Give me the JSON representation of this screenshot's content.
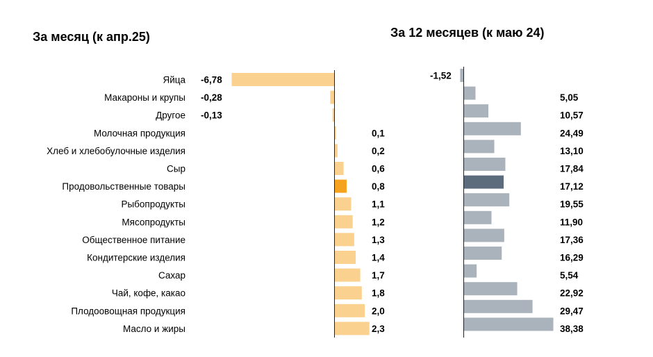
{
  "chart_data": [
    {
      "type": "bar",
      "orientation": "horizontal",
      "title": "За месяц (к апр.25)",
      "categories": [
        "Яйца",
        "Макароны и крупы",
        "Другое",
        "Молочная продукция",
        "Хлеб и хлебобулочные изделия",
        "Сыр",
        "Продовольственные товары",
        "Рыбопродукты",
        "Мясопродукты",
        "Общественное питание",
        "Кондитерские изделия",
        "Сахар",
        "Чай, кофе, какао",
        "Плодоовощная продукция",
        "Масло и жиры"
      ],
      "values": [
        -6.78,
        -0.28,
        -0.13,
        0.1,
        0.2,
        0.6,
        0.8,
        1.1,
        1.2,
        1.3,
        1.4,
        1.7,
        1.8,
        2.0,
        2.3
      ],
      "labels": [
        "-6,78",
        "-0,28",
        "-0,13",
        "0,1",
        "0,2",
        "0,6",
        "0,8",
        "1,1",
        "1,2",
        "1,3",
        "1,4",
        "1,7",
        "1,8",
        "2,0",
        "2,3"
      ],
      "highlight_index": 6,
      "colors": {
        "bar": "#fad18e",
        "highlight": "#f5a31e",
        "axis": "#222222"
      },
      "grid": false,
      "legend": "none"
    },
    {
      "type": "bar",
      "orientation": "horizontal",
      "title": "За 12 месяцев (к маю 24)",
      "categories": [
        "Яйца",
        "Макароны и крупы",
        "Другое",
        "Молочная продукция",
        "Хлеб и хлебобулочные изделия",
        "Сыр",
        "Продовольственные товары",
        "Рыбопродукты",
        "Мясопродукты",
        "Общественное питание",
        "Кондитерские изделия",
        "Сахар",
        "Чай, кофе, какао",
        "Плодоовощная продукция",
        "Масло и жиры"
      ],
      "values": [
        -1.52,
        5.05,
        10.57,
        24.49,
        13.1,
        17.84,
        17.12,
        19.55,
        11.9,
        17.36,
        16.29,
        5.54,
        22.92,
        29.47,
        38.38
      ],
      "labels": [
        "-1,52",
        "5,05",
        "10,57",
        "24,49",
        "13,10",
        "17,84",
        "17,12",
        "19,55",
        "11,90",
        "17,36",
        "16,29",
        "5,54",
        "22,92",
        "29,47",
        "38,38"
      ],
      "highlight_index": 6,
      "colors": {
        "bar": "#aab3bb",
        "highlight": "#5c6c7c",
        "axis": "#222222"
      },
      "grid": false,
      "legend": "none"
    }
  ]
}
